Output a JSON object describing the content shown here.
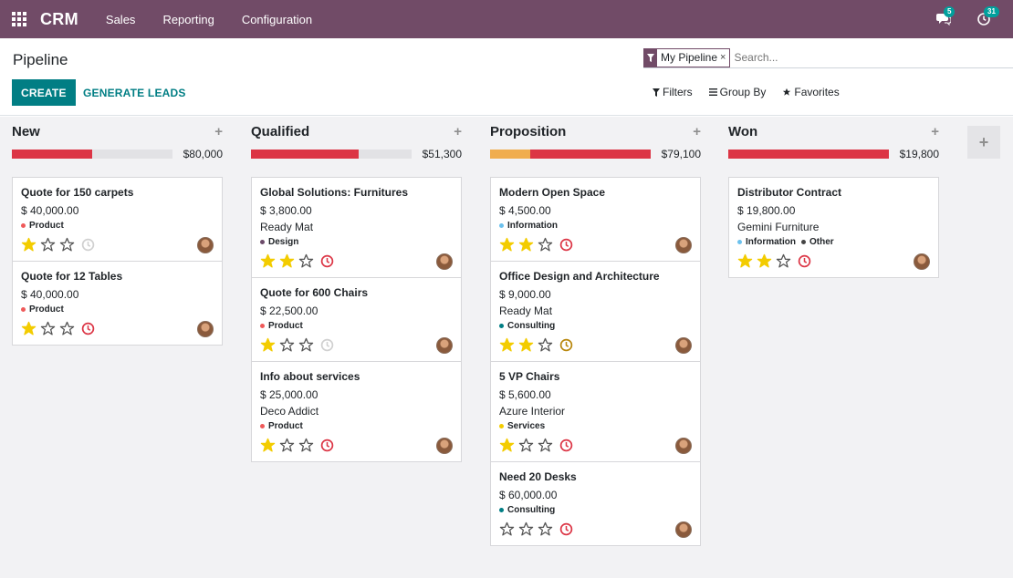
{
  "navbar": {
    "app_name": "CRM",
    "menu": [
      "Sales",
      "Reporting",
      "Configuration"
    ],
    "messages_count": "5",
    "activities_count": "31"
  },
  "control": {
    "title": "Pipeline",
    "create_label": "CREATE",
    "generate_label": "GENERATE LEADS",
    "facet_label": "My Pipeline",
    "facet_close": "×",
    "search_placeholder": "Search...",
    "filters_label": "Filters",
    "groupby_label": "Group By",
    "favorites_label": "Favorites"
  },
  "colors": {
    "brand": "#714b67",
    "teal": "#017e84",
    "red": "#dc3545",
    "orange": "#f0ad4e",
    "star": "#f3cc00"
  },
  "columns": [
    {
      "title": "New",
      "total": "$80,000",
      "progress": [
        {
          "color": "#dc3545",
          "fraction": 0.5
        }
      ],
      "cards": [
        {
          "title": "Quote for 150 carpets",
          "amount": "$ 40,000.00",
          "company": "",
          "tags": [
            {
              "label": "Product",
              "color": "#ef5a5a"
            }
          ],
          "stars": 1,
          "activity": "none"
        },
        {
          "title": "Quote for 12 Tables",
          "amount": "$ 40,000.00",
          "company": "",
          "tags": [
            {
              "label": "Product",
              "color": "#ef5a5a"
            }
          ],
          "stars": 1,
          "activity": "overdue"
        }
      ]
    },
    {
      "title": "Qualified",
      "total": "$51,300",
      "progress": [
        {
          "color": "#dc3545",
          "fraction": 0.67
        }
      ],
      "cards": [
        {
          "title": "Global Solutions: Furnitures",
          "amount": "$ 3,800.00",
          "company": "Ready Mat",
          "tags": [
            {
              "label": "Design",
              "color": "#6c4b6a"
            }
          ],
          "stars": 2,
          "activity": "overdue"
        },
        {
          "title": "Quote for 600 Chairs",
          "amount": "$ 22,500.00",
          "company": "",
          "tags": [
            {
              "label": "Product",
              "color": "#ef5a5a"
            }
          ],
          "stars": 1,
          "activity": "none"
        },
        {
          "title": "Info about services",
          "amount": "$ 25,000.00",
          "company": "Deco Addict",
          "tags": [
            {
              "label": "Product",
              "color": "#ef5a5a"
            }
          ],
          "stars": 1,
          "activity": "overdue"
        }
      ]
    },
    {
      "title": "Proposition",
      "total": "$79,100",
      "progress": [
        {
          "color": "#f0ad4e",
          "fraction": 0.25
        },
        {
          "color": "#dc3545",
          "fraction": 0.75
        }
      ],
      "cards": [
        {
          "title": "Modern Open Space",
          "amount": "$ 4,500.00",
          "company": "",
          "tags": [
            {
              "label": "Information",
              "color": "#6cc1ed"
            }
          ],
          "stars": 2,
          "activity": "overdue"
        },
        {
          "title": "Office Design and Architecture",
          "amount": "$ 9,000.00",
          "company": "Ready Mat",
          "tags": [
            {
              "label": "Consulting",
              "color": "#017e84"
            }
          ],
          "stars": 2,
          "activity": "today"
        },
        {
          "title": "5 VP Chairs",
          "amount": "$ 5,600.00",
          "company": "Azure Interior",
          "tags": [
            {
              "label": "Services",
              "color": "#f3cc00"
            }
          ],
          "stars": 1,
          "activity": "overdue"
        },
        {
          "title": "Need 20 Desks",
          "amount": "$ 60,000.00",
          "company": "",
          "tags": [
            {
              "label": "Consulting",
              "color": "#017e84"
            }
          ],
          "stars": 0,
          "activity": "overdue"
        }
      ]
    },
    {
      "title": "Won",
      "total": "$19,800",
      "progress": [
        {
          "color": "#dc3545",
          "fraction": 1.0
        }
      ],
      "cards": [
        {
          "title": "Distributor Contract",
          "amount": "$ 19,800.00",
          "company": "Gemini Furniture",
          "tags": [
            {
              "label": "Information",
              "color": "#6cc1ed"
            },
            {
              "label": "Other",
              "color": "#444444"
            }
          ],
          "stars": 2,
          "activity": "overdue"
        }
      ]
    }
  ],
  "add_column_label": "+"
}
